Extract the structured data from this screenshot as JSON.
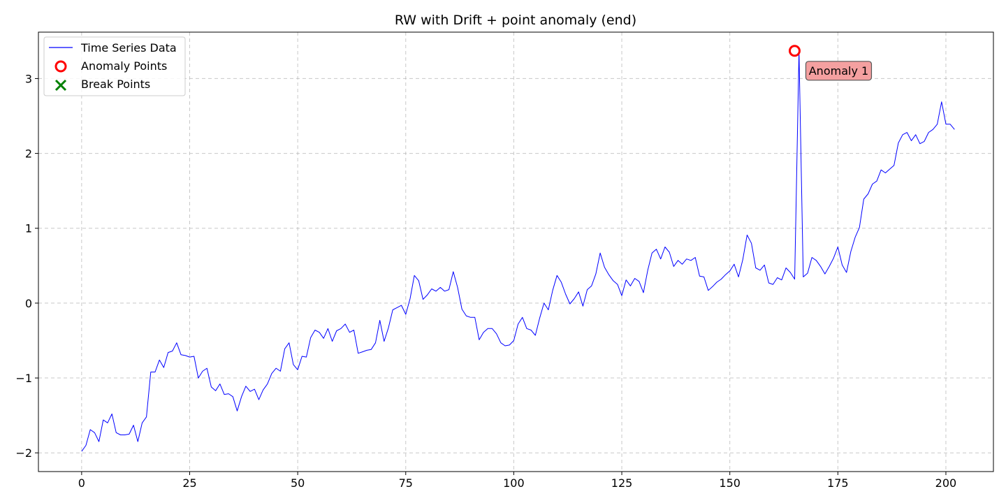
{
  "chart_data": {
    "type": "line",
    "title": "RW with Drift + point anomaly (end)",
    "xlabel": "",
    "ylabel": "",
    "xlim": [
      -10,
      211
    ],
    "ylim": [
      -2.25,
      3.62
    ],
    "xticks": [
      0,
      25,
      50,
      75,
      100,
      125,
      150,
      175,
      200
    ],
    "xtick_labels": [
      "0",
      "25",
      "50",
      "75",
      "100",
      "125",
      "150",
      "175",
      "200"
    ],
    "yticks": [
      -2,
      -1,
      0,
      1,
      2,
      3
    ],
    "ytick_labels": [
      "−2",
      "−1",
      "0",
      "1",
      "2",
      "3"
    ],
    "grid": true,
    "legend_position": "top-left",
    "colors": {
      "line": "#0000ff",
      "anomaly": "#ff0000",
      "break": "#008000",
      "annotation_fill": "#f4a0a0"
    },
    "series": [
      {
        "name": "Time Series Data",
        "x_start": 0,
        "values": [
          -1.98,
          -1.9,
          -1.69,
          -1.73,
          -1.85,
          -1.56,
          -1.6,
          -1.48,
          -1.73,
          -1.76,
          -1.76,
          -1.75,
          -1.63,
          -1.85,
          -1.6,
          -1.52,
          -0.92,
          -0.92,
          -0.76,
          -0.86,
          -0.66,
          -0.64,
          -0.53,
          -0.69,
          -0.7,
          -0.72,
          -0.71,
          -1.0,
          -0.91,
          -0.87,
          -1.12,
          -1.17,
          -1.08,
          -1.22,
          -1.21,
          -1.25,
          -1.44,
          -1.25,
          -1.11,
          -1.18,
          -1.15,
          -1.29,
          -1.16,
          -1.08,
          -0.94,
          -0.87,
          -0.91,
          -0.61,
          -0.53,
          -0.82,
          -0.89,
          -0.71,
          -0.72,
          -0.46,
          -0.36,
          -0.39,
          -0.47,
          -0.34,
          -0.51,
          -0.37,
          -0.34,
          -0.28,
          -0.39,
          -0.36,
          -0.67,
          -0.65,
          -0.63,
          -0.62,
          -0.53,
          -0.23,
          -0.51,
          -0.33,
          -0.09,
          -0.06,
          -0.03,
          -0.15,
          0.06,
          0.37,
          0.3,
          0.05,
          0.11,
          0.19,
          0.16,
          0.21,
          0.16,
          0.18,
          0.42,
          0.21,
          -0.08,
          -0.17,
          -0.19,
          -0.19,
          -0.49,
          -0.39,
          -0.34,
          -0.34,
          -0.41,
          -0.53,
          -0.57,
          -0.56,
          -0.5,
          -0.28,
          -0.19,
          -0.34,
          -0.36,
          -0.43,
          -0.2,
          0.0,
          -0.09,
          0.17,
          0.37,
          0.28,
          0.12,
          -0.01,
          0.06,
          0.15,
          -0.04,
          0.18,
          0.23,
          0.39,
          0.67,
          0.48,
          0.38,
          0.3,
          0.25,
          0.1,
          0.31,
          0.23,
          0.33,
          0.29,
          0.14,
          0.44,
          0.67,
          0.72,
          0.59,
          0.75,
          0.68,
          0.49,
          0.57,
          0.52,
          0.59,
          0.57,
          0.61,
          0.36,
          0.35,
          0.17,
          0.22,
          0.28,
          0.32,
          0.38,
          0.43,
          0.52,
          0.35,
          0.58,
          0.91,
          0.8,
          0.47,
          0.44,
          0.51,
          0.27,
          0.25,
          0.34,
          0.31,
          0.47,
          0.41,
          0.32,
          3.37,
          0.35,
          0.4,
          0.61,
          0.57,
          0.49,
          0.39,
          0.49,
          0.6,
          0.75,
          0.51,
          0.41,
          0.69,
          0.88,
          1.01,
          1.39,
          1.46,
          1.59,
          1.63,
          1.78,
          1.74,
          1.79,
          1.84,
          2.14,
          2.25,
          2.28,
          2.17,
          2.25,
          2.13,
          2.16,
          2.28,
          2.32,
          2.39,
          2.69,
          2.39,
          2.39,
          2.32
        ]
      },
      {
        "name": "Anomaly Points",
        "points": [
          [
            165,
            3.37
          ]
        ]
      },
      {
        "name": "Break Points",
        "points": []
      }
    ],
    "annotations": [
      {
        "text": "Anomaly 1",
        "x": 165,
        "y": 3.37
      }
    ]
  }
}
